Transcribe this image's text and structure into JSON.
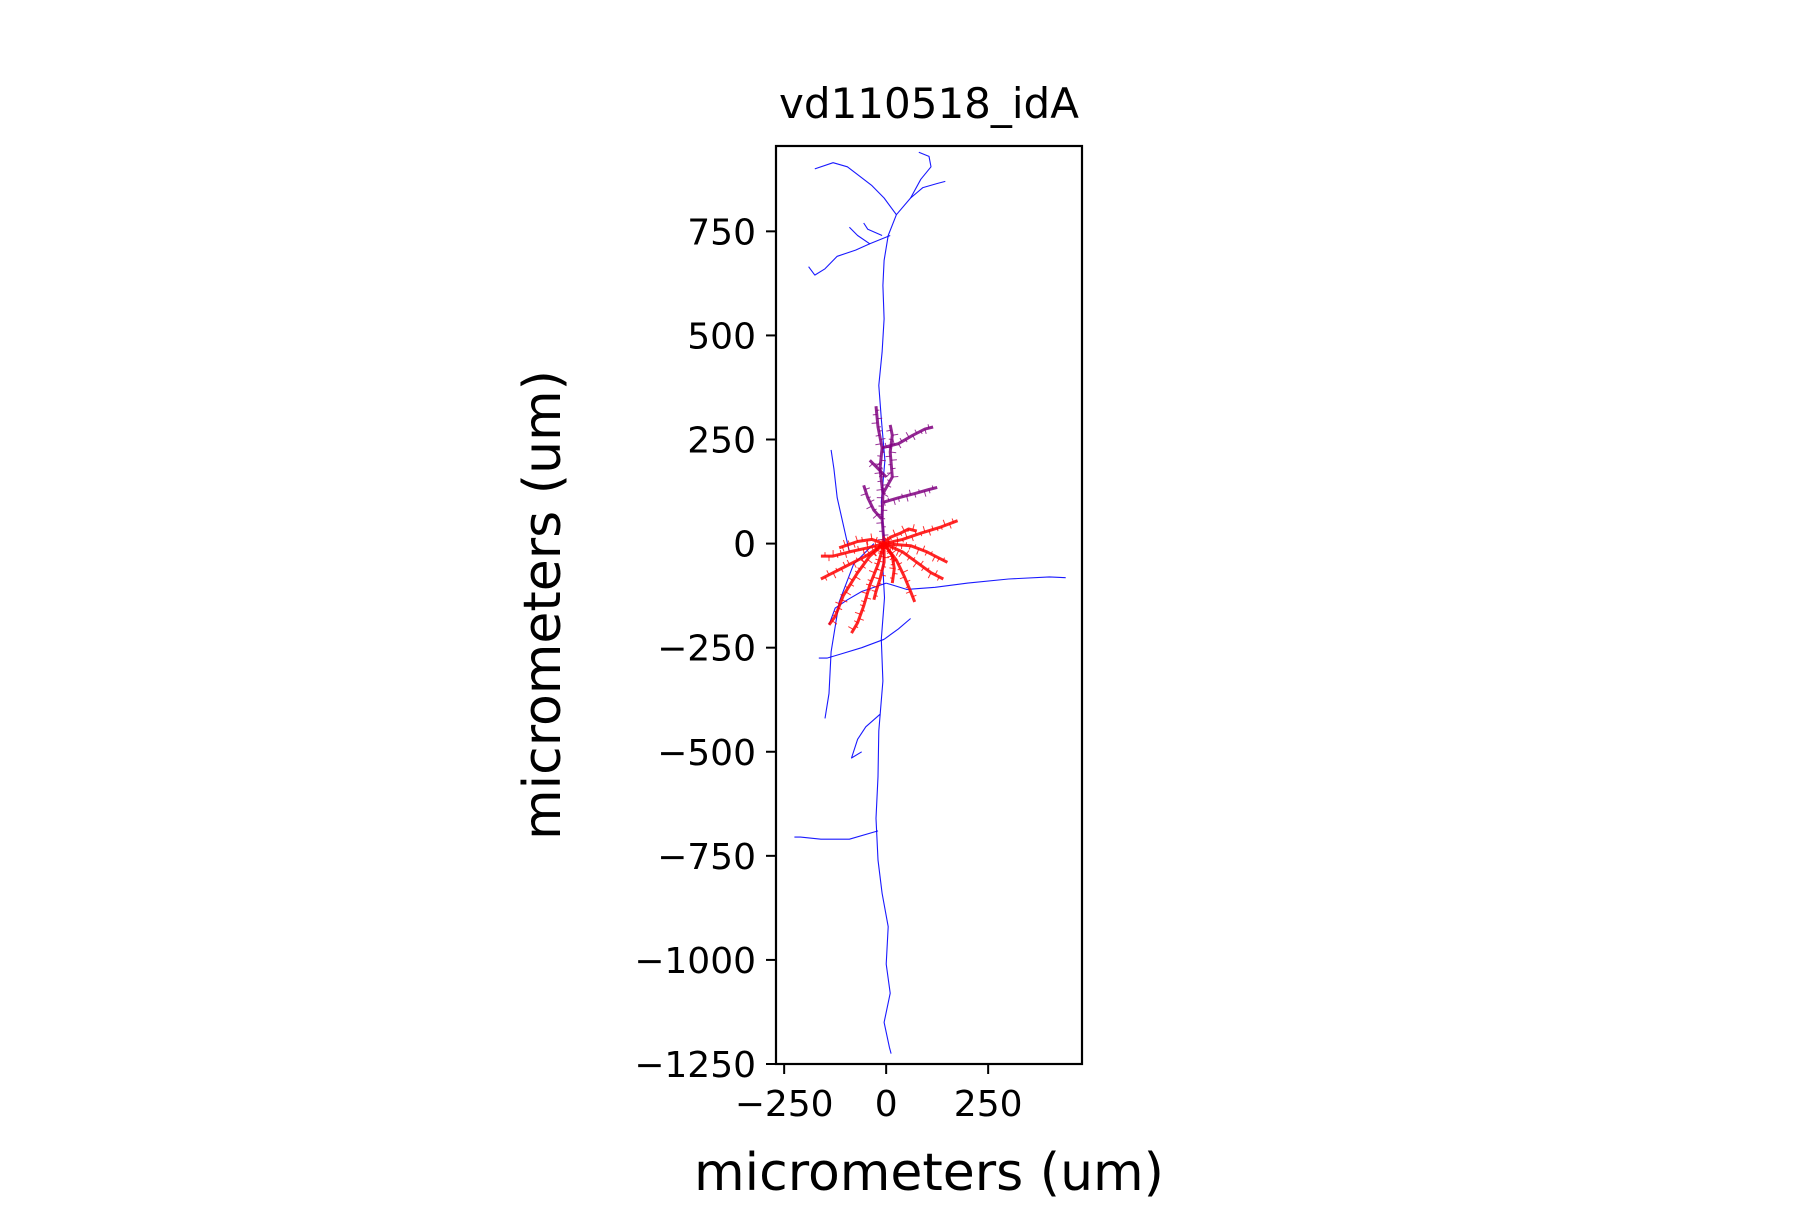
{
  "chart_data": {
    "type": "line",
    "title": "vd110518_idA",
    "xlabel": "micrometers (um)",
    "ylabel": "micrometers (um)",
    "xlim": [
      -270,
      480
    ],
    "ylim": [
      -1250,
      955
    ],
    "xticks": [
      -250,
      0,
      250
    ],
    "xtick_labels": [
      "−250",
      "0",
      "250"
    ],
    "yticks": [
      750,
      500,
      250,
      0,
      -250,
      -500,
      -750,
      -1000,
      -1250
    ],
    "ytick_labels": [
      "750",
      "500",
      "250",
      "0",
      "−250",
      "−500",
      "−750",
      "−1000",
      "−1250"
    ],
    "grid": false,
    "legend": "none",
    "series": [
      {
        "color": "#0000ff",
        "segments": [
          [
            [
              -5,
              0
            ],
            [
              -8,
              -60
            ],
            [
              -4,
              -130
            ],
            [
              -12,
              -230
            ],
            [
              -8,
              -330
            ],
            [
              -18,
              -450
            ],
            [
              -20,
              -560
            ],
            [
              -25,
              -660
            ],
            [
              -20,
              -760
            ],
            [
              -10,
              -840
            ],
            [
              5,
              -920
            ],
            [
              0,
              -1010
            ],
            [
              10,
              -1080
            ],
            [
              -5,
              -1150
            ],
            [
              8,
              -1210
            ],
            [
              12,
              -1225
            ]
          ],
          [
            [
              -5,
              0
            ],
            [
              -12,
              100
            ],
            [
              -3,
              200
            ],
            [
              -12,
              300
            ],
            [
              -18,
              380
            ],
            [
              -10,
              460
            ],
            [
              -5,
              540
            ],
            [
              -8,
              620
            ],
            [
              -5,
              680
            ],
            [
              5,
              740
            ],
            [
              25,
              790
            ],
            [
              60,
              830
            ],
            [
              85,
              875
            ],
            [
              110,
              905
            ],
            [
              105,
              930
            ],
            [
              80,
              940
            ]
          ],
          [
            [
              25,
              790
            ],
            [
              -5,
              830
            ],
            [
              -35,
              860
            ],
            [
              -75,
              890
            ],
            [
              -95,
              905
            ],
            [
              -130,
              915
            ],
            [
              -175,
              900
            ]
          ],
          [
            [
              60,
              830
            ],
            [
              90,
              855
            ],
            [
              125,
              865
            ],
            [
              145,
              870
            ]
          ],
          [
            [
              10,
              740
            ],
            [
              -40,
              720
            ],
            [
              -70,
              740
            ],
            [
              -90,
              760
            ]
          ],
          [
            [
              -40,
              720
            ],
            [
              -75,
              705
            ],
            [
              -120,
              690
            ],
            [
              -150,
              660
            ],
            [
              -175,
              645
            ],
            [
              -190,
              665
            ]
          ],
          [
            [
              -10,
              740
            ],
            [
              -45,
              755
            ],
            [
              -55,
              770
            ]
          ],
          [
            [
              0,
              -95
            ],
            [
              -60,
              -115
            ],
            [
              -95,
              -135
            ],
            [
              -125,
              -155
            ],
            [
              -140,
              -195
            ]
          ],
          [
            [
              0,
              -95
            ],
            [
              50,
              -110
            ],
            [
              120,
              -105
            ],
            [
              200,
              -95
            ],
            [
              300,
              -85
            ],
            [
              400,
              -80
            ],
            [
              440,
              -82
            ]
          ],
          [
            [
              -5,
              -230
            ],
            [
              -60,
              -250
            ],
            [
              -110,
              -265
            ],
            [
              -145,
              -275
            ],
            [
              -165,
              -275
            ]
          ],
          [
            [
              -5,
              -230
            ],
            [
              30,
              -205
            ],
            [
              60,
              -180
            ]
          ],
          [
            [
              -30,
              0
            ],
            [
              -80,
              -50
            ],
            [
              -115,
              -140
            ],
            [
              -135,
              -260
            ],
            [
              -140,
              -360
            ],
            [
              -150,
              -420
            ]
          ],
          [
            [
              -90,
              -20
            ],
            [
              -120,
              110
            ],
            [
              -128,
              180
            ],
            [
              -135,
              225
            ]
          ],
          [
            [
              -15,
              -410
            ],
            [
              -50,
              -440
            ],
            [
              -70,
              -470
            ],
            [
              -85,
              -515
            ],
            [
              -60,
              -500
            ]
          ],
          [
            [
              -20,
              -690
            ],
            [
              -90,
              -710
            ],
            [
              -160,
              -710
            ],
            [
              -210,
              -705
            ],
            [
              -225,
              -705
            ]
          ]
        ]
      },
      {
        "color": "#800080",
        "segments": [
          [
            [
              -5,
              0
            ],
            [
              -10,
              60
            ],
            [
              -8,
              120
            ],
            [
              -15,
              180
            ],
            [
              -10,
              230
            ],
            [
              -20,
              280
            ],
            [
              -25,
              330
            ]
          ],
          [
            [
              -8,
              120
            ],
            [
              15,
              160
            ],
            [
              10,
              220
            ],
            [
              15,
              260
            ],
            [
              10,
              285
            ]
          ],
          [
            [
              -10,
              230
            ],
            [
              30,
              240
            ],
            [
              65,
              260
            ],
            [
              95,
              275
            ],
            [
              115,
              280
            ]
          ],
          [
            [
              -5,
              100
            ],
            [
              30,
              110
            ],
            [
              70,
              120
            ],
            [
              105,
              130
            ],
            [
              125,
              135
            ]
          ],
          [
            [
              -12,
              60
            ],
            [
              -30,
              80
            ],
            [
              -45,
              110
            ],
            [
              -55,
              140
            ]
          ],
          [
            [
              0,
              160
            ],
            [
              -25,
              185
            ],
            [
              -40,
              200
            ]
          ]
        ]
      },
      {
        "color": "#ff0000",
        "segments": [
          [
            [
              -5,
              0
            ],
            [
              40,
              10
            ],
            [
              85,
              25
            ],
            [
              135,
              40
            ],
            [
              175,
              55
            ]
          ],
          [
            [
              -5,
              0
            ],
            [
              40,
              -20
            ],
            [
              75,
              -45
            ],
            [
              110,
              -70
            ],
            [
              140,
              -85
            ]
          ],
          [
            [
              -5,
              0
            ],
            [
              25,
              -40
            ],
            [
              45,
              -80
            ],
            [
              60,
              -115
            ],
            [
              70,
              -140
            ]
          ],
          [
            [
              -5,
              0
            ],
            [
              -5,
              -45
            ],
            [
              -15,
              -85
            ],
            [
              -25,
              -115
            ],
            [
              -30,
              -135
            ]
          ],
          [
            [
              -5,
              0
            ],
            [
              -40,
              -30
            ],
            [
              -70,
              -70
            ],
            [
              -105,
              -125
            ],
            [
              -125,
              -175
            ],
            [
              -140,
              -195
            ]
          ],
          [
            [
              -5,
              0
            ],
            [
              -45,
              -10
            ],
            [
              -90,
              -20
            ],
            [
              -130,
              -30
            ],
            [
              -160,
              -30
            ]
          ],
          [
            [
              -5,
              0
            ],
            [
              -50,
              -30
            ],
            [
              -100,
              -55
            ],
            [
              -140,
              -75
            ],
            [
              -160,
              -85
            ]
          ],
          [
            [
              -5,
              0
            ],
            [
              -20,
              -50
            ],
            [
              -40,
              -100
            ],
            [
              -55,
              -150
            ],
            [
              -70,
              -190
            ],
            [
              -85,
              -215
            ]
          ],
          [
            [
              -5,
              0
            ],
            [
              10,
              15
            ],
            [
              35,
              25
            ],
            [
              55,
              35
            ],
            [
              75,
              30
            ]
          ],
          [
            [
              -5,
              0
            ],
            [
              -35,
              10
            ],
            [
              -70,
              5
            ],
            [
              -100,
              -5
            ],
            [
              -115,
              -10
            ]
          ],
          [
            [
              -5,
              0
            ],
            [
              15,
              -30
            ],
            [
              20,
              -60
            ],
            [
              15,
              -95
            ]
          ],
          [
            [
              -5,
              0
            ],
            [
              60,
              -5
            ],
            [
              100,
              -20
            ],
            [
              130,
              -35
            ],
            [
              150,
              -45
            ]
          ]
        ]
      }
    ]
  }
}
